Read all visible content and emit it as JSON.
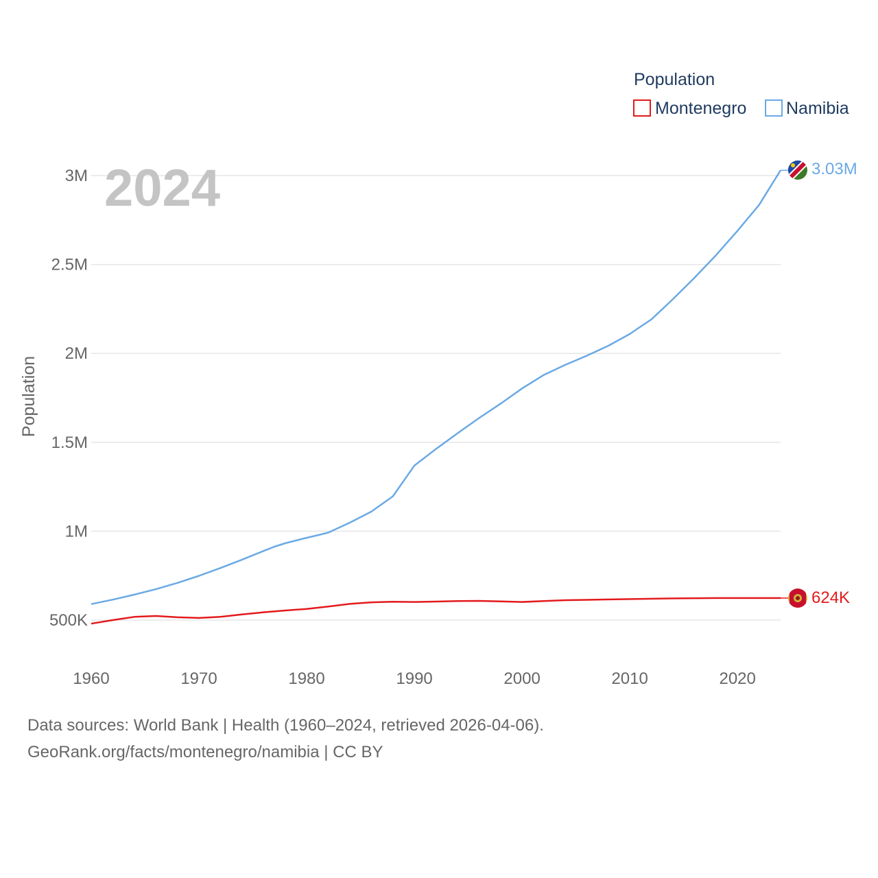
{
  "chart_data": {
    "type": "line",
    "title": "Population",
    "year_watermark": "2024",
    "ylabel": "Population",
    "xlabel": "",
    "xlim": [
      1960,
      2024
    ],
    "ylim": [
      300000,
      3050000
    ],
    "x_ticks": [
      1960,
      1970,
      1980,
      1990,
      2000,
      2010,
      2020
    ],
    "x_tick_labels": [
      "1960",
      "1970",
      "1980",
      "1990",
      "2000",
      "2010",
      "2020"
    ],
    "y_ticks": [
      500000,
      1000000,
      1500000,
      2000000,
      2500000,
      3000000
    ],
    "y_tick_labels": [
      "500K",
      "1M",
      "1.5M",
      "2M",
      "2.5M",
      "3M"
    ],
    "grid": true,
    "legend_position": "top-right",
    "series": [
      {
        "name": "Montenegro",
        "color": "#e31a1c",
        "end_label": "624K",
        "flag_icon": "montenegro-flag-icon",
        "x": [
          1960,
          1962,
          1964,
          1966,
          1968,
          1970,
          1972,
          1974,
          1976,
          1978,
          1980,
          1982,
          1984,
          1986,
          1988,
          1990,
          1992,
          1994,
          1996,
          1998,
          2000,
          2002,
          2004,
          2006,
          2008,
          2010,
          2012,
          2014,
          2016,
          2018,
          2020,
          2022,
          2024
        ],
        "values": [
          480000,
          500000,
          518000,
          523000,
          516000,
          512000,
          518000,
          532000,
          544000,
          554000,
          563000,
          576000,
          591000,
          600000,
          603000,
          602000,
          604000,
          607000,
          608000,
          605000,
          602000,
          607000,
          612000,
          614000,
          616000,
          618000,
          620000,
          622000,
          623000,
          624000,
          624000,
          624000,
          624000
        ]
      },
      {
        "name": "Namibia",
        "color": "#6aa9e4",
        "end_label": "3.03M",
        "flag_icon": "namibia-flag-icon",
        "x": [
          1960,
          1962,
          1964,
          1966,
          1968,
          1970,
          1972,
          1974,
          1976,
          1977,
          1978,
          1980,
          1981,
          1982,
          1984,
          1986,
          1988,
          1990,
          1992,
          1994,
          1996,
          1998,
          2000,
          2002,
          2004,
          2006,
          2008,
          2010,
          2011,
          2012,
          2014,
          2016,
          2018,
          2020,
          2022,
          2024
        ],
        "values": [
          590000,
          615000,
          643000,
          674000,
          709000,
          749000,
          793000,
          840000,
          889000,
          913000,
          932000,
          963000,
          977000,
          992000,
          1048000,
          1110000,
          1196000,
          1369000,
          1462000,
          1550000,
          1636000,
          1717000,
          1803000,
          1878000,
          1935000,
          1987000,
          2043000,
          2109000,
          2151000,
          2191000,
          2305000,
          2425000,
          2552000,
          2690000,
          2835000,
          3030000
        ]
      }
    ]
  },
  "source": {
    "line1": "Data sources: World Bank | Health (1960–2024, retrieved 2026-04-06).",
    "line2": "GeoRank.org/facts/montenegro/namibia | CC BY"
  }
}
